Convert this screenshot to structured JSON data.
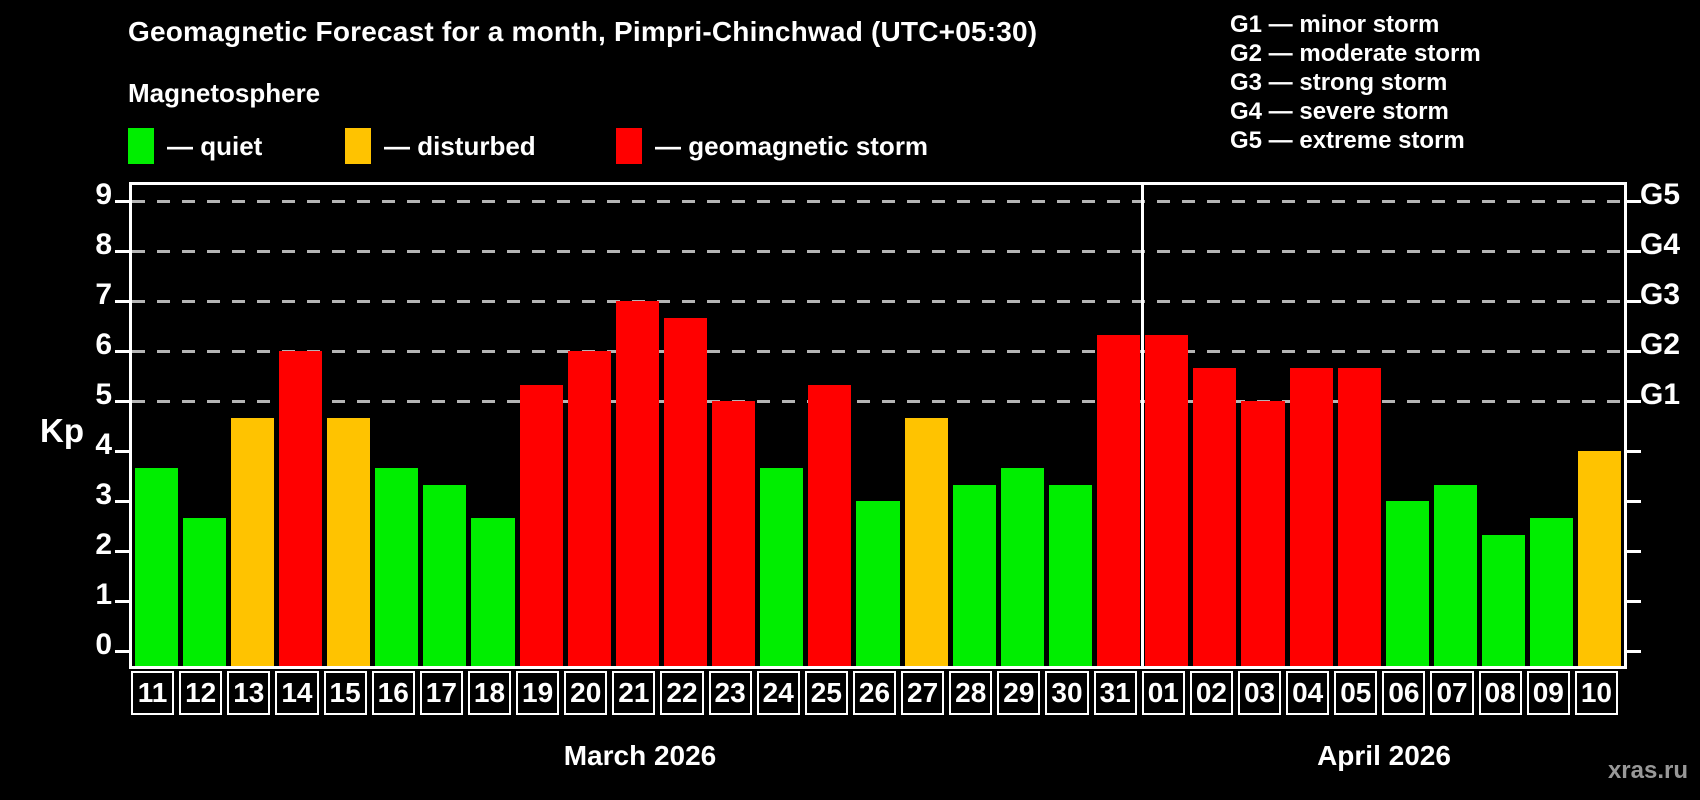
{
  "title": "Geomagnetic Forecast for a month, Pimpri-Chinchwad (UTC+05:30)",
  "subtitle": "Magnetosphere",
  "legend": {
    "items": [
      {
        "key": "quiet",
        "label": "— quiet"
      },
      {
        "key": "disturbed",
        "label": "— disturbed"
      },
      {
        "key": "storm",
        "label": "— geomagnetic storm"
      }
    ]
  },
  "g_legend": [
    "G1 — minor storm",
    "G2 — moderate storm",
    "G3 — strong storm",
    "G4 — severe storm",
    "G5 — extreme storm"
  ],
  "months": [
    {
      "label": "March 2026",
      "days": 21
    },
    {
      "label": "April 2026",
      "days": 10
    }
  ],
  "watermark": "xras.ru",
  "colors": {
    "background": "#000000",
    "quiet": "#00ee00",
    "disturbed": "#ffc300",
    "storm": "#ff0000",
    "grid": "#b5b5b5",
    "axis": "#ffffff",
    "watermark": "#989898"
  },
  "chart_data": {
    "type": "bar",
    "title": "Geomagnetic Forecast for a month, Pimpri-Chinchwad (UTC+05:30)",
    "xlabel": "",
    "ylabel": "Kp",
    "ylim": [
      0,
      9.35
    ],
    "y_ticks": [
      0,
      1,
      2,
      3,
      4,
      5,
      6,
      7,
      8,
      9
    ],
    "gridlines_at": [
      5,
      6,
      7,
      8,
      9
    ],
    "grid": "dashed, only at storm levels 5-9",
    "legend_position": "top-left",
    "right_axis_labels": [
      {
        "value": 5,
        "label": "G1"
      },
      {
        "value": 6,
        "label": "G2"
      },
      {
        "value": 7,
        "label": "G3"
      },
      {
        "value": 8,
        "label": "G4"
      },
      {
        "value": 9,
        "label": "G5"
      }
    ],
    "month_split_index": 21,
    "categories": [
      "11",
      "12",
      "13",
      "14",
      "15",
      "16",
      "17",
      "18",
      "19",
      "20",
      "21",
      "22",
      "23",
      "24",
      "25",
      "26",
      "27",
      "28",
      "29",
      "30",
      "31",
      "01",
      "02",
      "03",
      "04",
      "05",
      "06",
      "07",
      "08",
      "09",
      "10"
    ],
    "values": [
      3.67,
      2.67,
      4.67,
      6,
      4.67,
      3.67,
      3.33,
      2.67,
      5.33,
      6,
      7,
      6.67,
      5,
      3.67,
      5.33,
      3,
      4.67,
      3.33,
      3.67,
      3.33,
      6.33,
      6.33,
      5.67,
      5,
      5.67,
      5.67,
      3,
      3.33,
      2.33,
      2.67,
      4
    ],
    "statuses": [
      "quiet",
      "quiet",
      "disturbed",
      "storm",
      "disturbed",
      "quiet",
      "quiet",
      "quiet",
      "storm",
      "storm",
      "storm",
      "storm",
      "storm",
      "quiet",
      "storm",
      "quiet",
      "disturbed",
      "quiet",
      "quiet",
      "quiet",
      "storm",
      "storm",
      "storm",
      "storm",
      "storm",
      "storm",
      "quiet",
      "quiet",
      "quiet",
      "quiet",
      "disturbed"
    ]
  }
}
